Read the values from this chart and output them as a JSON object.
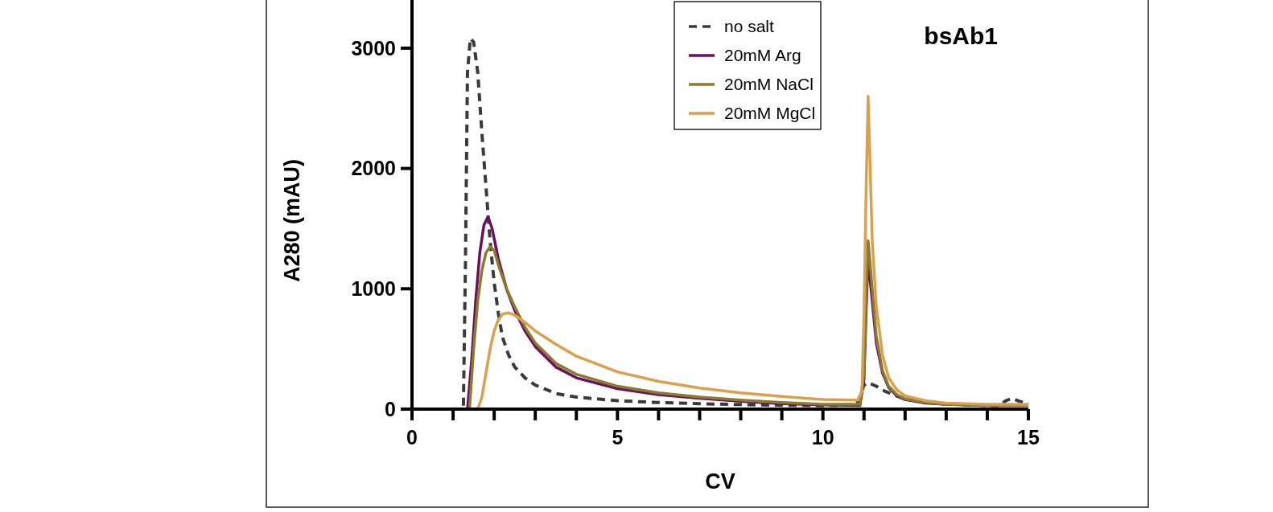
{
  "chart_data": {
    "type": "line",
    "xlabel": "CV",
    "ylabel": "A280 (mAU)",
    "annotations": [
      "bsAb1"
    ],
    "xlim": [
      0,
      15
    ],
    "ylim": [
      0,
      3400
    ],
    "xticks": [
      0,
      {
        "value": 1,
        "label": null
      },
      {
        "value": 2,
        "label": null
      },
      {
        "value": 3,
        "label": null
      },
      {
        "value": 4,
        "label": null
      },
      5,
      {
        "value": 6,
        "label": null
      },
      {
        "value": 7,
        "label": null
      },
      {
        "value": 8,
        "label": null
      },
      {
        "value": 9,
        "label": null
      },
      10,
      {
        "value": 11,
        "label": null
      },
      {
        "value": 12,
        "label": null
      },
      {
        "value": 13,
        "label": null
      },
      {
        "value": 14,
        "label": null
      },
      15
    ],
    "yticks": [
      0,
      1000,
      2000,
      3000
    ],
    "grid": false,
    "legend": "top",
    "marker": "none",
    "series": [
      {
        "name": "no salt",
        "color": "#3a3a3a",
        "line_style": "dashed",
        "x": [
          0,
          1.25,
          1.3,
          1.35,
          1.42,
          1.5,
          1.6,
          1.7,
          1.8,
          1.9,
          2.0,
          2.1,
          2.2,
          2.35,
          2.5,
          2.75,
          3,
          3.5,
          4,
          5,
          6,
          7,
          8,
          9,
          10,
          10.7,
          10.85,
          11.0,
          11.1,
          11.3,
          11.5,
          11.8,
          12,
          12.5,
          13,
          13.5,
          14,
          14.3,
          14.45,
          14.6,
          14.75,
          15
        ],
        "values": [
          0,
          0,
          1200,
          2800,
          3080,
          3050,
          2800,
          2300,
          1850,
          1400,
          1050,
          800,
          600,
          450,
          350,
          260,
          200,
          130,
          100,
          70,
          55,
          45,
          38,
          32,
          30,
          35,
          60,
          200,
          220,
          190,
          150,
          110,
          85,
          60,
          45,
          35,
          30,
          28,
          70,
          90,
          70,
          40
        ]
      },
      {
        "name": "20mM Arg",
        "color": "#6b0f5e",
        "x": [
          0,
          1.35,
          1.45,
          1.55,
          1.65,
          1.75,
          1.85,
          1.95,
          2.1,
          2.3,
          2.5,
          2.75,
          3,
          3.5,
          4,
          5,
          6,
          7,
          8,
          9,
          10,
          10.9,
          11.0,
          11.05,
          11.1,
          11.2,
          11.3,
          11.45,
          11.6,
          11.8,
          12,
          12.5,
          13,
          14,
          15
        ],
        "values": [
          0,
          0,
          400,
          900,
          1300,
          1530,
          1600,
          1500,
          1250,
          1000,
          820,
          650,
          520,
          350,
          260,
          170,
          120,
          90,
          65,
          45,
          35,
          30,
          250,
          800,
          1250,
          900,
          550,
          300,
          180,
          110,
          80,
          50,
          40,
          30,
          30
        ]
      },
      {
        "name": "20mM NaCl",
        "color": "#8a7c2e",
        "x": [
          0,
          1.4,
          1.5,
          1.6,
          1.7,
          1.8,
          1.9,
          2.0,
          2.1,
          2.3,
          2.5,
          2.75,
          3,
          3.5,
          4,
          5,
          6,
          7,
          8,
          9,
          10,
          10.9,
          11.0,
          11.05,
          11.1,
          11.2,
          11.3,
          11.45,
          11.6,
          11.8,
          12,
          12.5,
          13,
          14,
          15
        ],
        "values": [
          0,
          0,
          500,
          900,
          1150,
          1300,
          1350,
          1320,
          1200,
          1000,
          850,
          680,
          550,
          380,
          290,
          190,
          135,
          100,
          75,
          55,
          40,
          40,
          300,
          900,
          1400,
          1000,
          600,
          320,
          190,
          120,
          85,
          55,
          40,
          30,
          30
        ]
      },
      {
        "name": "20mM MgCl",
        "color": "#d9a050",
        "x": [
          0,
          1.6,
          1.7,
          1.8,
          1.9,
          2.0,
          2.1,
          2.2,
          2.35,
          2.5,
          2.75,
          3,
          3.5,
          4,
          5,
          6,
          7,
          8,
          9,
          10,
          10.85,
          10.95,
          11.0,
          11.05,
          11.1,
          11.15,
          11.2,
          11.3,
          11.45,
          11.6,
          11.8,
          12,
          12.5,
          13,
          14,
          15
        ],
        "values": [
          0,
          0,
          100,
          300,
          500,
          650,
          740,
          790,
          800,
          780,
          720,
          650,
          540,
          440,
          310,
          230,
          175,
          135,
          105,
          80,
          75,
          150,
          800,
          1800,
          2600,
          2000,
          1400,
          850,
          450,
          260,
          160,
          110,
          70,
          50,
          40,
          40
        ]
      }
    ]
  }
}
